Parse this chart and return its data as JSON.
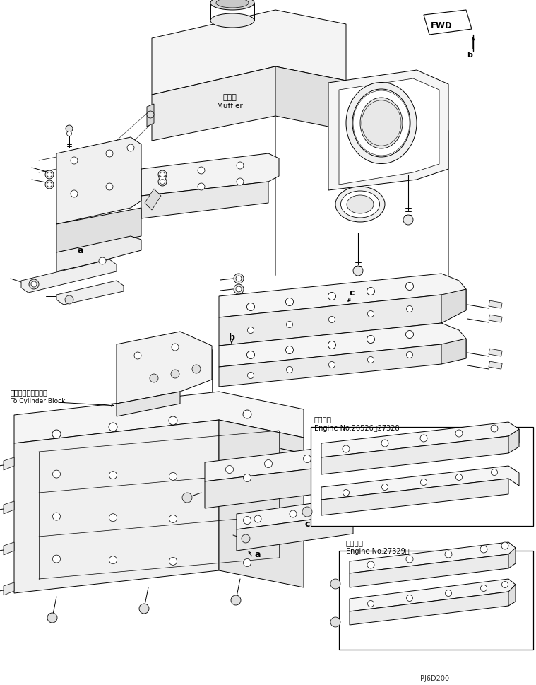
{
  "bg_color": "#ffffff",
  "line_color": "#000000",
  "lw": 0.7,
  "fig_width": 7.59,
  "fig_height": 9.7,
  "dpi": 100,
  "label_muffler_jp": "マフラ",
  "label_muffler_en": "Muffler",
  "label_cylinder_jp": "シリンダブロックへ",
  "label_cylinder_en": "To Cylinder Block",
  "label_fwd": "FWD",
  "label_b": "b",
  "label_a": "a",
  "label_b2": "b",
  "label_c1": "c",
  "label_c2": "c",
  "label_app1_jp": "適用号機",
  "label_app1_en": "Engine No.26526～27328",
  "label_app2_jp": "適用号機",
  "label_app2_en": "Engine No.27329～",
  "label_code": "PJ6D200"
}
